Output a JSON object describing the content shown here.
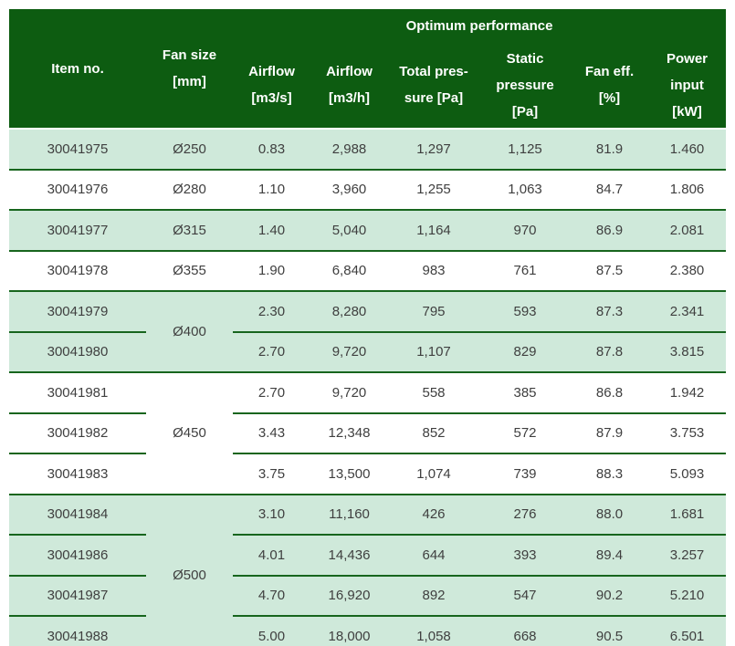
{
  "colors": {
    "header_bg": "#0d5c11",
    "header_text": "#ffffff",
    "row_green": "#cfe9da",
    "row_white": "#ffffff",
    "border_green": "#17651d",
    "text_dark": "#3f3f3f"
  },
  "header": {
    "optimum_title": "Optimum performance",
    "item_col": [
      "Item no."
    ],
    "fan_size_col": [
      "Fan size",
      "[mm]"
    ],
    "data_columns": [
      [
        "Airflow",
        "[m3/s]"
      ],
      [
        "Airflow",
        "[m3/h]"
      ],
      [
        "Total pres-",
        "sure [Pa]"
      ],
      [
        "Static",
        "pressure",
        "[Pa]"
      ],
      [
        "Fan eff.",
        "[%]"
      ],
      [
        "Power",
        "input",
        "[kW]"
      ]
    ]
  },
  "groups": [
    {
      "fan_size": "Ø250",
      "shade": "green",
      "rows": [
        {
          "item_no": "30041975",
          "values": [
            "0.83",
            "2,988",
            "1,297",
            "1,125",
            "81.9",
            "1.460"
          ]
        }
      ]
    },
    {
      "fan_size": "Ø280",
      "shade": "white",
      "rows": [
        {
          "item_no": "30041976",
          "values": [
            "1.10",
            "3,960",
            "1,255",
            "1,063",
            "84.7",
            "1.806"
          ]
        }
      ]
    },
    {
      "fan_size": "Ø315",
      "shade": "green",
      "rows": [
        {
          "item_no": "30041977",
          "values": [
            "1.40",
            "5,040",
            "1,164",
            "970",
            "86.9",
            "2.081"
          ]
        }
      ]
    },
    {
      "fan_size": "Ø355",
      "shade": "white",
      "rows": [
        {
          "item_no": "30041978",
          "values": [
            "1.90",
            "6,840",
            "983",
            "761",
            "87.5",
            "2.380"
          ]
        }
      ]
    },
    {
      "fan_size": "Ø400",
      "shade": "green",
      "rows": [
        {
          "item_no": "30041979",
          "values": [
            "2.30",
            "8,280",
            "795",
            "593",
            "87.3",
            "2.341"
          ]
        },
        {
          "item_no": "30041980",
          "values": [
            "2.70",
            "9,720",
            "1,107",
            "829",
            "87.8",
            "3.815"
          ]
        }
      ]
    },
    {
      "fan_size": "Ø450",
      "shade": "white",
      "rows": [
        {
          "item_no": "30041981",
          "values": [
            "2.70",
            "9,720",
            "558",
            "385",
            "86.8",
            "1.942"
          ]
        },
        {
          "item_no": "30041982",
          "values": [
            "3.43",
            "12,348",
            "852",
            "572",
            "87.9",
            "3.753"
          ]
        },
        {
          "item_no": "30041983",
          "values": [
            "3.75",
            "13,500",
            "1,074",
            "739",
            "88.3",
            "5.093"
          ]
        }
      ]
    },
    {
      "fan_size": "Ø500",
      "shade": "green",
      "rows": [
        {
          "item_no": "30041984",
          "values": [
            "3.10",
            "11,160",
            "426",
            "276",
            "88.0",
            "1.681"
          ]
        },
        {
          "item_no": "30041986",
          "values": [
            "4.01",
            "14,436",
            "644",
            "393",
            "89.4",
            "3.257"
          ]
        },
        {
          "item_no": "30041987",
          "values": [
            "4.70",
            "16,920",
            "892",
            "547",
            "90.2",
            "5.210"
          ]
        },
        {
          "item_no": "30041988",
          "values": [
            "5.00",
            "18,000",
            "1,058",
            "668",
            "90.5",
            "6.501"
          ]
        }
      ]
    }
  ]
}
